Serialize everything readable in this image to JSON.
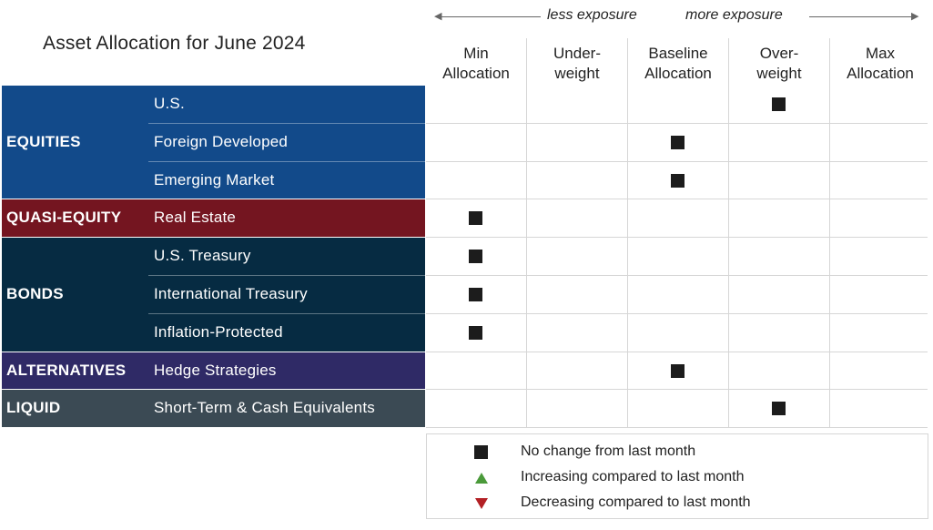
{
  "title": "Asset Allocation for June 2024",
  "exposure": {
    "less": "less exposure",
    "more": "more exposure"
  },
  "columns": [
    [
      "Min",
      "Allocation"
    ],
    [
      "Under-",
      "weight"
    ],
    [
      "Baseline",
      "Allocation"
    ],
    [
      "Over-",
      "weight"
    ],
    [
      "Max",
      "Allocation"
    ]
  ],
  "categories": [
    {
      "name": "EQUITIES",
      "color": "#124a8a",
      "rows": [
        {
          "label": "U.S.",
          "level": 3
        },
        {
          "label": "Foreign Developed",
          "level": 2
        },
        {
          "label": "Emerging Market",
          "level": 2
        }
      ]
    },
    {
      "name": "QUASI-EQUITY",
      "color": "#741520",
      "rows": [
        {
          "label": "Real Estate",
          "level": 0
        }
      ]
    },
    {
      "name": "BONDS",
      "color": "#062b42",
      "rows": [
        {
          "label": "U.S. Treasury",
          "level": 0
        },
        {
          "label": "International Treasury",
          "level": 0
        },
        {
          "label": "Inflation-Protected",
          "level": 0
        }
      ]
    },
    {
      "name": "ALTERNATIVES",
      "color": "#2f2a66",
      "rows": [
        {
          "label": "Hedge Strategies",
          "level": 2
        }
      ]
    },
    {
      "name": "LIQUID",
      "color": "#3b4a54",
      "rows": [
        {
          "label": "Short-Term & Cash Equivalents",
          "level": 3
        }
      ]
    }
  ],
  "legend": [
    {
      "symbol": "square",
      "text": "No change from last month"
    },
    {
      "symbol": "triangle-up",
      "text": "Increasing compared to last month",
      "color": "#4a9a3a"
    },
    {
      "symbol": "triangle-down",
      "text": "Decreasing compared to last month",
      "color": "#b32025"
    }
  ],
  "chart_data": {
    "type": "table",
    "title": "Asset Allocation for June 2024",
    "columns": [
      "Min Allocation",
      "Underweight",
      "Baseline Allocation",
      "Overweight",
      "Max Allocation"
    ],
    "rows": [
      {
        "category": "EQUITIES",
        "asset": "U.S.",
        "allocation": "Overweight",
        "change": "No change from last month"
      },
      {
        "category": "EQUITIES",
        "asset": "Foreign Developed",
        "allocation": "Baseline Allocation",
        "change": "No change from last month"
      },
      {
        "category": "EQUITIES",
        "asset": "Emerging Market",
        "allocation": "Baseline Allocation",
        "change": "No change from last month"
      },
      {
        "category": "QUASI-EQUITY",
        "asset": "Real Estate",
        "allocation": "Min Allocation",
        "change": "No change from last month"
      },
      {
        "category": "BONDS",
        "asset": "U.S. Treasury",
        "allocation": "Min Allocation",
        "change": "No change from last month"
      },
      {
        "category": "BONDS",
        "asset": "International Treasury",
        "allocation": "Min Allocation",
        "change": "No change from last month"
      },
      {
        "category": "BONDS",
        "asset": "Inflation-Protected",
        "allocation": "Min Allocation",
        "change": "No change from last month"
      },
      {
        "category": "ALTERNATIVES",
        "asset": "Hedge Strategies",
        "allocation": "Baseline Allocation",
        "change": "No change from last month"
      },
      {
        "category": "LIQUID",
        "asset": "Short-Term & Cash Equivalents",
        "allocation": "Overweight",
        "change": "No change from last month"
      }
    ]
  }
}
